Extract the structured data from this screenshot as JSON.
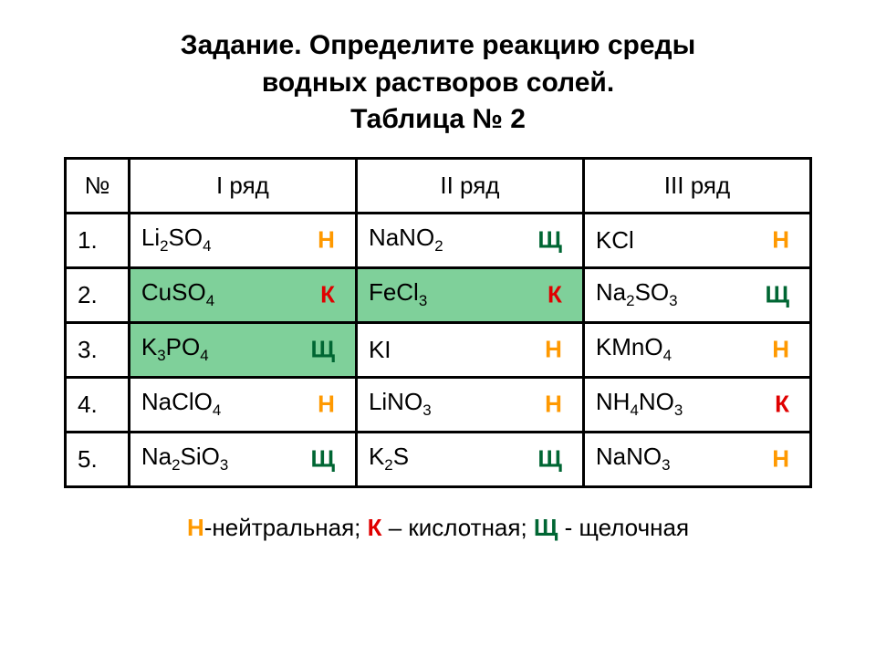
{
  "title": {
    "line1": "Задание. Определите реакцию среды",
    "line2": "водных растворов солей.",
    "line3": "Таблица № 2"
  },
  "headers": {
    "num": "№",
    "col1": "I ряд",
    "col2": "II ряд",
    "col3": "III ряд"
  },
  "answer_colors": {
    "Н": "#ff9900",
    "К": "#e00000",
    "Щ": "#006633"
  },
  "highlight_color": "#7fd09a",
  "background_color": "#ffffff",
  "border_color": "#000000",
  "font_sizes": {
    "title": 30,
    "cell": 26,
    "legend": 26
  },
  "rows": [
    {
      "num": "1.",
      "cells": [
        {
          "formula": "Li₂SO₄",
          "answer": "Н",
          "highlight": false
        },
        {
          "formula": "NaNO₂",
          "answer": "Щ",
          "highlight": false
        },
        {
          "formula": "KCl",
          "answer": "Н",
          "highlight": false
        }
      ]
    },
    {
      "num": "2.",
      "cells": [
        {
          "formula": "CuSO₄",
          "answer": "К",
          "highlight": true
        },
        {
          "formula": "FeCl₃",
          "answer": "К",
          "highlight": true
        },
        {
          "formula": "Na₂SO₃",
          "answer": "Щ",
          "highlight": false
        }
      ]
    },
    {
      "num": "3.",
      "cells": [
        {
          "formula": "K₃PO₄",
          "answer": "Щ",
          "highlight": true
        },
        {
          "formula": "KI",
          "answer": "Н",
          "highlight": false
        },
        {
          "formula": "KMnO₄",
          "answer": "Н",
          "highlight": false
        }
      ]
    },
    {
      "num": "4.",
      "cells": [
        {
          "formula": "NaClO₄",
          "answer": "Н",
          "highlight": false
        },
        {
          "formula": "LiNO₃",
          "answer": "Н",
          "highlight": false
        },
        {
          "formula": "NH₄NO₃",
          "answer": "К",
          "highlight": false
        }
      ]
    },
    {
      "num": "5.",
      "cells": [
        {
          "formula": "Na₂SiO₃",
          "answer": "Щ",
          "highlight": false
        },
        {
          "formula": "K₂S",
          "answer": "Щ",
          "highlight": false
        },
        {
          "formula": "NaNO₃",
          "answer": "Н",
          "highlight": false
        }
      ]
    }
  ],
  "legend": {
    "n_sym": "Н",
    "n_text": "-нейтральная; ",
    "k_sym": "К",
    "k_text": " – кислотная; ",
    "sh_sym": "Щ",
    "sh_text": " - щелочная"
  }
}
